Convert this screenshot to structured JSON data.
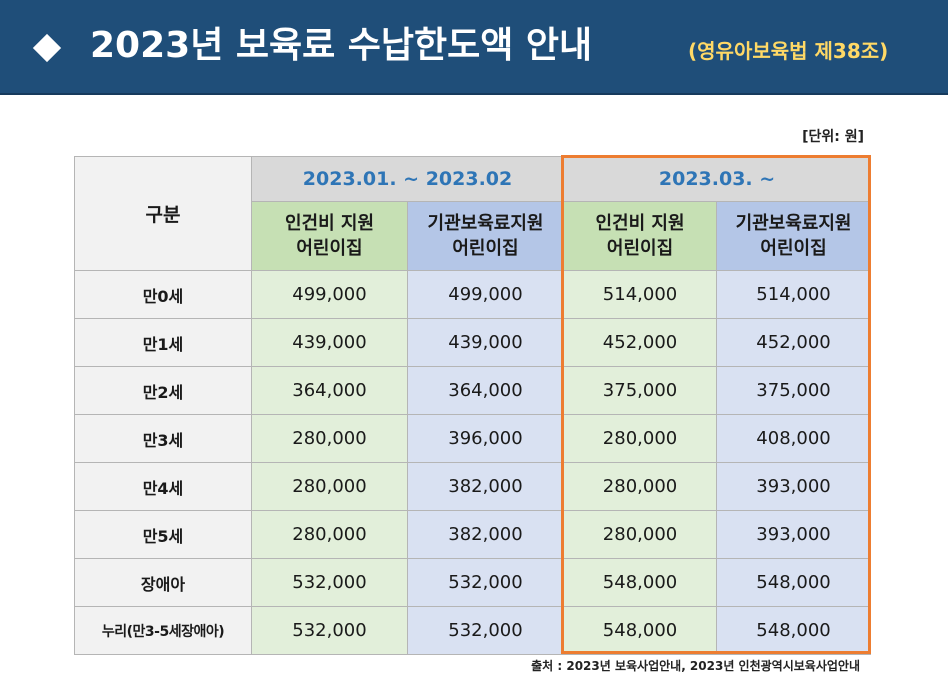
{
  "title": "2023년 보육료 수납한도액 안내",
  "law_reference": "(영유아보육법 제38조)",
  "unit": "[단위: 원]",
  "table": {
    "corner_label": "구분",
    "periods": [
      "2023.01. ~ 2023.02",
      "2023.03. ~"
    ],
    "sub_headers": [
      [
        "인건비 지원",
        "어린이집"
      ],
      [
        "기관보육료지원",
        "어린이집"
      ],
      [
        "인건비 지원",
        "어린이집"
      ],
      [
        "기관보육료지원",
        "어린이집"
      ]
    ],
    "rows": [
      {
        "label": "만0세",
        "values": [
          "499,000",
          "499,000",
          "514,000",
          "514,000"
        ]
      },
      {
        "label": "만1세",
        "values": [
          "439,000",
          "439,000",
          "452,000",
          "452,000"
        ]
      },
      {
        "label": "만2세",
        "values": [
          "364,000",
          "364,000",
          "375,000",
          "375,000"
        ]
      },
      {
        "label": "만3세",
        "values": [
          "280,000",
          "396,000",
          "280,000",
          "408,000"
        ]
      },
      {
        "label": "만4세",
        "values": [
          "280,000",
          "382,000",
          "280,000",
          "393,000"
        ]
      },
      {
        "label": "만5세",
        "values": [
          "280,000",
          "382,000",
          "280,000",
          "393,000"
        ]
      },
      {
        "label": "장애아",
        "values": [
          "532,000",
          "532,000",
          "548,000",
          "548,000"
        ]
      },
      {
        "label": "누리(만3-5세장애아)",
        "values": [
          "532,000",
          "532,000",
          "548,000",
          "548,000"
        ]
      }
    ]
  },
  "source": "출처 : 2023년 보육사업안내, 2023년 인천광역시보육사업안내",
  "colors": {
    "banner": "#1f4e79",
    "law_text": "#ffd966",
    "period_text": "#2e75b6",
    "green_header": "#c6e0b4",
    "blue_header": "#b4c6e7",
    "green_cell": "#e2efda",
    "blue_cell": "#d9e1f2",
    "highlight_border": "#ed7d31"
  }
}
